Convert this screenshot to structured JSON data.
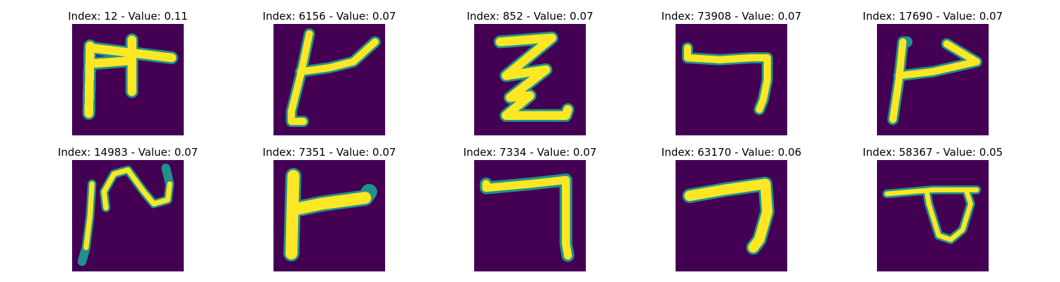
{
  "colors": {
    "background": "#440154",
    "stroke_outer": "#21918c",
    "stroke_mid": "#5ec962",
    "stroke_core": "#fde725"
  },
  "grid": [
    {
      "title": "Index: 12 - Value: 0.11",
      "glyph": "glyph-12"
    },
    {
      "title": "Index: 6156 - Value: 0.07",
      "glyph": "glyph-6156"
    },
    {
      "title": "Index: 852 - Value: 0.07",
      "glyph": "glyph-852"
    },
    {
      "title": "Index: 73908 - Value: 0.07",
      "glyph": "glyph-73908"
    },
    {
      "title": "Index: 17690 - Value: 0.07",
      "glyph": "glyph-17690"
    },
    {
      "title": "Index: 14983 - Value: 0.07",
      "glyph": "glyph-14983"
    },
    {
      "title": "Index: 7351 - Value: 0.07",
      "glyph": "glyph-7351"
    },
    {
      "title": "Index: 7334 - Value: 0.07",
      "glyph": "glyph-7334"
    },
    {
      "title": "Index: 63170 - Value: 0.06",
      "glyph": "glyph-63170"
    },
    {
      "title": "Index: 58367 - Value: 0.05",
      "glyph": "glyph-58367"
    }
  ]
}
